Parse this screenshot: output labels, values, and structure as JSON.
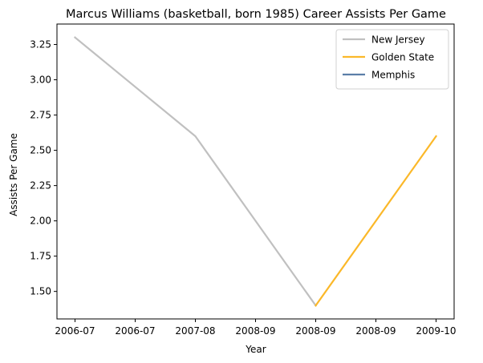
{
  "chart_data": {
    "type": "line",
    "title": "Marcus Williams (basketball, born 1985) Career Assists Per Game",
    "xlabel": "Year",
    "ylabel": "Assists Per Game",
    "x_tick_labels": [
      "2006-07",
      "2006-07",
      "2007-08",
      "2008-09",
      "2008-09",
      "2008-09",
      "2009-10"
    ],
    "x_ticks": [
      0,
      0.5,
      1,
      1.5,
      2,
      2.5,
      3
    ],
    "xlim": [
      -0.15,
      3.15
    ],
    "y_ticks": [
      1.5,
      1.75,
      2.0,
      2.25,
      2.5,
      2.75,
      3.0,
      3.25
    ],
    "y_tick_labels": [
      "1.50",
      "1.75",
      "2.00",
      "2.25",
      "2.50",
      "2.75",
      "3.00",
      "3.25"
    ],
    "ylim": [
      1.305,
      3.395
    ],
    "grid": false,
    "legend_position": "top-right",
    "series": [
      {
        "name": "New Jersey",
        "color": "#c0c0c0",
        "x": [
          0,
          1,
          2
        ],
        "y": [
          3.3,
          2.6,
          1.4
        ]
      },
      {
        "name": "Golden State",
        "color": "#fbb829",
        "x": [
          2,
          3
        ],
        "y": [
          1.4,
          2.6
        ]
      },
      {
        "name": "Memphis",
        "color": "#5b7ea8",
        "x": [],
        "y": []
      }
    ]
  }
}
